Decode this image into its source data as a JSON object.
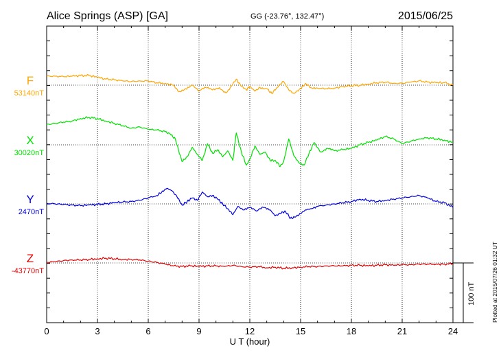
{
  "header": {
    "station": "Alice Springs (ASP)  [GA]",
    "coords": "GG (-23.76°, 132.47°)",
    "date": "2015/06/25"
  },
  "footer": {
    "plotted": "Plotted at 2015/07/26 01:32 UT"
  },
  "chart_data": {
    "type": "line",
    "title": "Alice Springs (ASP)  [GA]",
    "xlabel": "U T (hour)",
    "ylabel": "",
    "xlim": [
      0,
      24
    ],
    "x_ticks": [
      "0",
      "3",
      "6",
      "9",
      "12",
      "15",
      "18",
      "21",
      "24"
    ],
    "grid": true,
    "scale_bar": "100 nT",
    "nt_per_panel_unit": 100,
    "series": [
      {
        "name": "F",
        "baseline": "53140nT",
        "color": "#FFA500",
        "x": [
          0,
          0.5,
          1,
          1.5,
          2,
          2.5,
          3,
          3.5,
          4,
          4.5,
          5,
          5.5,
          6,
          6.5,
          7,
          7.5,
          7.8,
          8.2,
          8.6,
          9,
          9.4,
          9.8,
          10.2,
          10.6,
          11,
          11.2,
          11.5,
          11.8,
          12,
          12.3,
          12.6,
          13,
          13.3,
          13.6,
          14,
          14.3,
          14.6,
          15,
          15.3,
          15.6,
          16,
          16.5,
          17,
          17.5,
          18,
          18.5,
          19,
          19.5,
          20,
          20.5,
          21,
          21.5,
          22,
          22.5,
          23,
          23.5,
          24
        ],
        "y": [
          15,
          15,
          14,
          15,
          16,
          16,
          13,
          10,
          9,
          7,
          6,
          7,
          7,
          4,
          3,
          0,
          -11,
          -6,
          0,
          -10,
          -4,
          -8,
          -4,
          -13,
          2,
          10,
          -2,
          -8,
          -2,
          -10,
          -4,
          -6,
          -14,
          -4,
          6,
          -8,
          -14,
          -6,
          3,
          -4,
          -5,
          -6,
          -5,
          -2,
          -1,
          0,
          2,
          4,
          5,
          3,
          3,
          5,
          7,
          5,
          4,
          4,
          0
        ]
      },
      {
        "name": "X",
        "baseline": "30020nT",
        "color": "#00E000",
        "x": [
          0,
          0.5,
          1,
          1.5,
          2,
          2.5,
          3,
          3.5,
          4,
          4.5,
          5,
          5.5,
          6,
          6.5,
          7,
          7.3,
          7.6,
          7.8,
          8,
          8.3,
          8.6,
          8.9,
          9.2,
          9.5,
          9.8,
          10.1,
          10.4,
          10.7,
          11,
          11.2,
          11.5,
          11.8,
          12,
          12.3,
          12.6,
          12.9,
          13.2,
          13.5,
          13.8,
          14,
          14.3,
          14.6,
          14.9,
          15.2,
          15.5,
          15.8,
          16.2,
          16.6,
          17,
          17.5,
          18,
          18.5,
          19,
          19.5,
          20,
          20.5,
          21,
          21.5,
          22,
          22.5,
          23,
          23.5,
          24
        ],
        "y": [
          34,
          36,
          38,
          40,
          44,
          46,
          44,
          40,
          36,
          32,
          28,
          30,
          26,
          25,
          22,
          18,
          10,
          -10,
          -28,
          -20,
          -4,
          -16,
          -26,
          2,
          -14,
          -8,
          -20,
          -10,
          -26,
          20,
          -12,
          -34,
          -24,
          -2,
          -16,
          -12,
          -26,
          -26,
          -36,
          -28,
          10,
          -18,
          -30,
          -34,
          -14,
          4,
          -12,
          -6,
          -10,
          -8,
          -6,
          0,
          4,
          8,
          14,
          10,
          2,
          6,
          10,
          12,
          10,
          8,
          4
        ]
      },
      {
        "name": "Y",
        "baseline": "2470nT",
        "color": "#0000DD",
        "x": [
          0,
          0.5,
          1,
          1.5,
          2,
          2.5,
          3,
          3.5,
          4,
          4.5,
          5,
          5.5,
          6,
          6.5,
          6.8,
          7.1,
          7.4,
          7.7,
          8,
          8.3,
          8.6,
          8.9,
          9.2,
          9.5,
          9.8,
          10.1,
          10.4,
          10.7,
          11,
          11.3,
          11.6,
          12,
          12.4,
          12.8,
          13.2,
          13.5,
          13.8,
          14.1,
          14.4,
          14.7,
          15,
          15.3,
          15.6,
          16,
          16.5,
          17,
          17.5,
          18,
          18.5,
          19,
          19.5,
          20,
          20.5,
          21,
          21.5,
          22,
          22.5,
          23,
          23.5,
          24
        ],
        "y": [
          1,
          0,
          -1,
          -2,
          -3,
          -2,
          -1,
          0,
          2,
          3,
          4,
          6,
          10,
          14,
          20,
          26,
          22,
          12,
          -2,
          4,
          10,
          6,
          20,
          12,
          14,
          8,
          0,
          -8,
          -18,
          -4,
          -10,
          -6,
          -12,
          -6,
          -10,
          -20,
          -16,
          -12,
          -24,
          -22,
          -16,
          -10,
          -8,
          -4,
          -2,
          0,
          2,
          4,
          8,
          6,
          4,
          6,
          8,
          10,
          12,
          14,
          10,
          4,
          2,
          -6
        ]
      },
      {
        "name": "Z",
        "baseline": "-43770nT",
        "color": "#E00000",
        "x": [
          0,
          0.5,
          1,
          1.5,
          2,
          2.5,
          3,
          3.5,
          4,
          4.5,
          5,
          5.5,
          6,
          6.5,
          7,
          7.5,
          8,
          8.5,
          9,
          9.5,
          10,
          10.5,
          11,
          11.5,
          12,
          12.5,
          13,
          13.5,
          14,
          14.5,
          15,
          15.5,
          16,
          16.5,
          17,
          17.5,
          18,
          18.5,
          19,
          19.5,
          20,
          20.5,
          21,
          21.5,
          22,
          22.5,
          23,
          23.5,
          24
        ],
        "y": [
          1,
          2,
          4,
          5,
          5,
          6,
          7,
          8,
          7,
          6,
          6,
          5,
          3,
          1,
          -2,
          -5,
          -6,
          -5,
          -6,
          -5,
          -5,
          -6,
          -4,
          -6,
          -7,
          -6,
          -8,
          -7,
          -9,
          -8,
          -7,
          -6,
          -6,
          -5,
          -5,
          -5,
          -4,
          -4,
          -5,
          -4,
          -3,
          -4,
          -3,
          -3,
          -2,
          -2,
          -2,
          -2,
          -1
        ]
      }
    ]
  }
}
